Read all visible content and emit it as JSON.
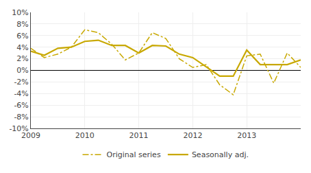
{
  "chart_data": {
    "type": "line",
    "categories": [
      "2009",
      null,
      null,
      null,
      "2010",
      null,
      null,
      null,
      "2011",
      null,
      null,
      null,
      "2012",
      null,
      null,
      null,
      "2013",
      null,
      null,
      null,
      null
    ],
    "series": [
      {
        "name": "Original series",
        "color": "#c8a800",
        "line_style": "dashdot",
        "values": [
          0.038,
          0.022,
          0.028,
          0.04,
          0.07,
          0.065,
          0.045,
          0.018,
          0.03,
          0.065,
          0.055,
          0.02,
          0.005,
          0.01,
          -0.025,
          -0.042,
          0.025,
          0.028,
          -0.022,
          0.03,
          0.005
        ]
      },
      {
        "name": "Seasonally adj.",
        "color": "#c8a800",
        "line_style": "solid",
        "values": [
          0.033,
          0.026,
          0.038,
          0.04,
          0.05,
          0.052,
          0.043,
          0.043,
          0.03,
          0.043,
          0.042,
          0.028,
          0.022,
          0.006,
          -0.01,
          -0.01,
          0.035,
          0.01,
          0.01,
          0.01,
          0.018
        ]
      }
    ],
    "ylim": [
      -0.1,
      0.1
    ],
    "yticks": [
      {
        "value": -0.1,
        "label": "-10%"
      },
      {
        "value": -0.08,
        "label": "-8%"
      },
      {
        "value": -0.06,
        "label": "-6%"
      },
      {
        "value": -0.04,
        "label": "-4%"
      },
      {
        "value": -0.02,
        "label": "-2%"
      },
      {
        "value": 0.0,
        "label": "0%"
      },
      {
        "value": 0.02,
        "label": "2%"
      },
      {
        "value": 0.04,
        "label": "4%"
      },
      {
        "value": 0.06,
        "label": "6%"
      },
      {
        "value": 0.08,
        "label": "8%"
      },
      {
        "value": 0.1,
        "label": "10%"
      }
    ],
    "grid": true,
    "legend": "bottom"
  }
}
